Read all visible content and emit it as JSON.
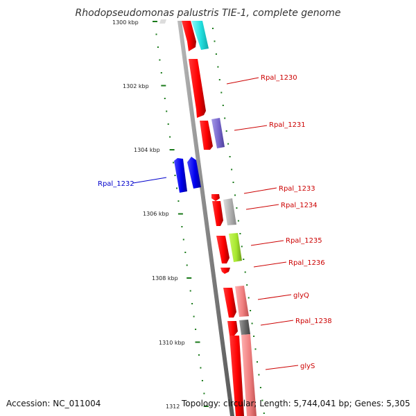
{
  "map": {
    "title": "Rhodopseudomonas palustris TIE-1, complete genome",
    "accession": "Accession: NC_011004",
    "topology": "Topology: circular; Length: 5,744,041 bp; Genes: 5,305"
  },
  "scale_ticks": [
    {
      "label": "1300 kbp",
      "pos_kbp": 1300
    },
    {
      "label": "1302 kbp",
      "pos_kbp": 1302
    },
    {
      "label": "1304 kbp",
      "pos_kbp": 1304
    },
    {
      "label": "1306 kbp",
      "pos_kbp": 1306
    },
    {
      "label": "1308 kbp",
      "pos_kbp": 1308
    },
    {
      "label": "1310 kbp",
      "pos_kbp": 1310
    },
    {
      "label": "1312",
      "pos_kbp": 1312
    }
  ],
  "gene_labels": [
    {
      "text": "Rpal_1230",
      "color": "#cc0000"
    },
    {
      "text": "Rpal_1231",
      "color": "#cc0000"
    },
    {
      "text": "Rpal_1232",
      "color": "#0000cc"
    },
    {
      "text": "Rpal_1233",
      "color": "#cc0000"
    },
    {
      "text": "Rpal_1234",
      "color": "#cc0000"
    },
    {
      "text": "Rpal_1235",
      "color": "#cc0000"
    },
    {
      "text": "Rpal_1236",
      "color": "#cc0000"
    },
    {
      "text": "glyQ",
      "color": "#cc0000"
    },
    {
      "text": "Rpal_1238",
      "color": "#cc0000"
    },
    {
      "text": "glyS",
      "color": "#cc0000"
    }
  ],
  "colors": {
    "backbone": "#888888",
    "cds_red": "#ff0000",
    "cyan": "#22e0e0",
    "purple": "#7766cc",
    "blue": "#0000ee",
    "gray": "#b0b0b0",
    "lime": "#a8e830",
    "salmon": "#f08080",
    "dark_gray": "#666666",
    "tick_green": "#1a7a1a"
  }
}
